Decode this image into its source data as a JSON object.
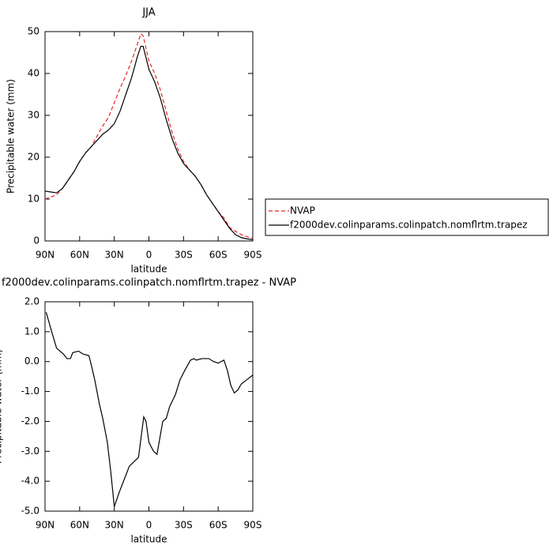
{
  "chart_data": [
    {
      "type": "line",
      "title": "JJA",
      "x_label": "latitude",
      "y_label": "Precipitable water (mm)",
      "x": [
        90,
        85,
        80,
        75,
        70,
        65,
        60,
        55,
        50,
        45,
        40,
        35,
        30,
        25,
        20,
        15,
        10,
        7,
        5,
        0,
        -5,
        -10,
        -15,
        -20,
        -25,
        -30,
        -35,
        -40,
        -45,
        -50,
        -55,
        -60,
        -65,
        -70,
        -75,
        -80,
        -85,
        -90
      ],
      "series": [
        {
          "name": "NVAP",
          "color": "#e8262a",
          "dash": true,
          "values": [
            10,
            10.5,
            11,
            12.5,
            14.5,
            16.5,
            19,
            21,
            22.5,
            25,
            27.5,
            29.5,
            33,
            36.5,
            39.5,
            43,
            47,
            49.5,
            49,
            43,
            40,
            36,
            31,
            26,
            22,
            19,
            17,
            15.5,
            13.5,
            11,
            9,
            7,
            5.5,
            3.2,
            2.3,
            1.5,
            1,
            0.6
          ]
        },
        {
          "name": "f2000dev.colinparams.colinpatch.nomflrtm.trapez",
          "color": "#000000",
          "dash": false,
          "values": [
            11.9,
            11.7,
            11.5,
            12.5,
            14.5,
            16.5,
            19,
            21,
            22.5,
            24,
            25.5,
            26.5,
            28,
            31,
            35,
            39,
            44,
            46.5,
            46.5,
            41,
            38,
            34,
            29,
            24.5,
            21,
            18.5,
            17,
            15.5,
            13.5,
            11,
            9,
            7,
            5,
            3,
            1.5,
            0.8,
            0.5,
            0.3
          ]
        }
      ],
      "xlim": [
        90,
        -90
      ],
      "xticks": [
        {
          "value": 90,
          "label": "90N"
        },
        {
          "value": 60,
          "label": "60N"
        },
        {
          "value": 30,
          "label": "30N"
        },
        0,
        {
          "value": -30,
          "label": "30S"
        },
        {
          "value": -60,
          "label": "60S"
        },
        {
          "value": -90,
          "label": "90S"
        }
      ],
      "ylim": [
        0,
        50
      ],
      "yticks": [
        0,
        10,
        20,
        30,
        40,
        50
      ],
      "legend": "right"
    },
    {
      "type": "line",
      "title": "f2000dev.colinparams.colinpatch.nomflrtm.trapez - NVAP",
      "x_label": "latitude",
      "y_label": "Precipitable water (mm)",
      "x": [
        89,
        85,
        80,
        74,
        71,
        68,
        66,
        61,
        57,
        52,
        50,
        47,
        43,
        40,
        36,
        33,
        30,
        26,
        22,
        17,
        13,
        9,
        7,
        4.5,
        2.5,
        0,
        -4,
        -7,
        -12,
        -15,
        -18,
        -23,
        -27,
        -31,
        -36,
        -39,
        -41,
        -46,
        -52,
        -56,
        -60,
        -65,
        -68,
        -71,
        -74,
        -77,
        -80,
        -85,
        -90
      ],
      "values": [
        1.65,
        1.1,
        0.45,
        0.25,
        0.1,
        0.1,
        0.3,
        0.35,
        0.25,
        0.2,
        -0.1,
        -0.6,
        -1.4,
        -1.9,
        -2.7,
        -3.7,
        -4.85,
        -4.4,
        -4.0,
        -3.5,
        -3.35,
        -3.2,
        -2.6,
        -1.85,
        -2.0,
        -2.7,
        -3.0,
        -3.1,
        -2.0,
        -1.9,
        -1.5,
        -1.1,
        -0.6,
        -0.3,
        0.05,
        0.1,
        0.05,
        0.1,
        0.1,
        0.0,
        -0.05,
        0.05,
        -0.3,
        -0.8,
        -1.05,
        -0.95,
        -0.75,
        -0.6,
        -0.45
      ],
      "color": "#000000",
      "xlim": [
        90,
        -90
      ],
      "xticks": [
        {
          "value": 90,
          "label": "90N"
        },
        {
          "value": 60,
          "label": "60N"
        },
        {
          "value": 30,
          "label": "30N"
        },
        0,
        {
          "value": -30,
          "label": "30S"
        },
        {
          "value": -60,
          "label": "60S"
        },
        {
          "value": -90,
          "label": "90S"
        }
      ],
      "ylim": [
        -5,
        2
      ],
      "yticks": [
        {
          "value": 2,
          "label": "2.0"
        },
        {
          "value": 1,
          "label": "1.0"
        },
        {
          "value": 0,
          "label": "0.0"
        },
        {
          "value": -1,
          "label": "-1.0"
        },
        {
          "value": -2,
          "label": "-2.0"
        },
        {
          "value": -3,
          "label": "-3.0"
        },
        {
          "value": -4,
          "label": "-4.0"
        },
        {
          "value": -5,
          "label": "-5.0"
        }
      ]
    }
  ]
}
